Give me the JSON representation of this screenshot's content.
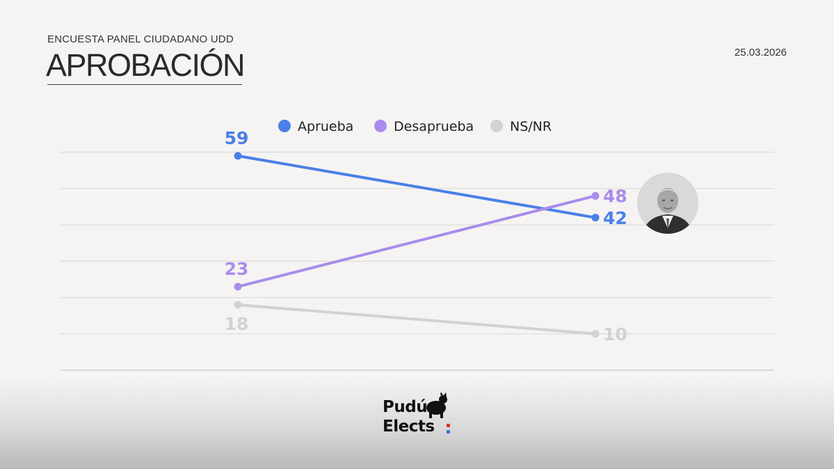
{
  "header": {
    "subtitle": "ENCUESTA PANEL CIUDADANO UDD",
    "title": "APROBACIÓN",
    "date": "25.03.2026"
  },
  "logo": {
    "line1": "Pudú",
    "line2": "Elects"
  },
  "colors": {
    "background": "#f5f4f2",
    "aprueba": "#4a7fe8",
    "desaprueba": "#a98cec",
    "nsnr": "#d2d2d2",
    "grid": "#d7d7d7",
    "logo_red": "#d9342b",
    "logo_blue": "#3b6fd8"
  },
  "chart_data": {
    "type": "line",
    "title": "APROBACIÓN",
    "xlabel": "",
    "ylabel": "",
    "x": [
      "",
      ""
    ],
    "ylim": [
      0,
      70
    ],
    "grid": true,
    "legend_position": "top",
    "series": [
      {
        "name": "Aprueba",
        "color": "#4a7fe8",
        "values": [
          59,
          42
        ],
        "labels": [
          "59",
          "42"
        ]
      },
      {
        "name": "Desaprueba",
        "color": "#a98cec",
        "values": [
          23,
          48
        ],
        "labels": [
          "23",
          "48"
        ]
      },
      {
        "name": "NS/NR",
        "color": "#d2d2d2",
        "values": [
          18,
          10
        ],
        "labels": [
          "18",
          "10"
        ]
      }
    ]
  }
}
